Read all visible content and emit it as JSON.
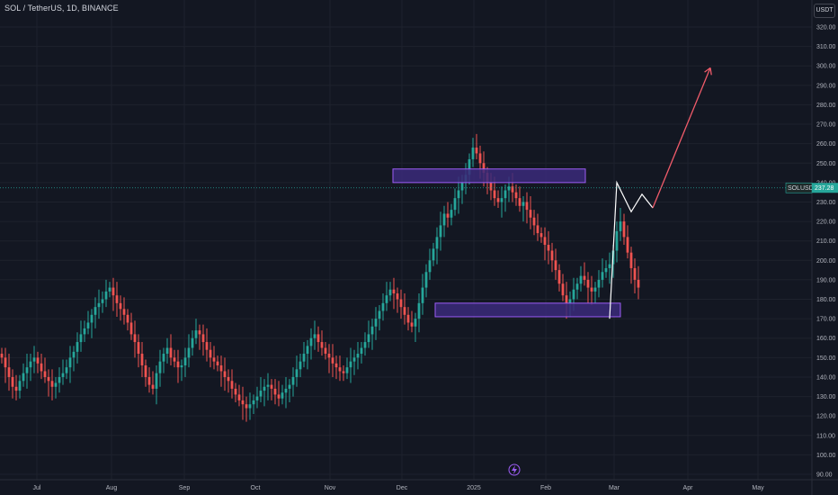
{
  "header": {
    "title": "SOL / TetherUS, 1D, BINANCE",
    "currency_button": "USDT"
  },
  "colors": {
    "background": "#131722",
    "up": "#26a69a",
    "down": "#ef5350",
    "zone_fill": "#3b2a7a",
    "zone_border": "#9c5cf5",
    "projection_white": "#ffffff",
    "projection_red": "#f05b6a",
    "price_line": "#26a69a"
  },
  "chart_data": {
    "type": "candlestick",
    "y_axis": {
      "min": 90,
      "max": 320,
      "step": 10,
      "position": "right",
      "ticks": [
        "90.00",
        "100.00",
        "110.00",
        "120.00",
        "130.00",
        "140.00",
        "150.00",
        "160.00",
        "170.00",
        "180.00",
        "190.00",
        "200.00",
        "210.00",
        "220.00",
        "230.00",
        "240.00",
        "250.00",
        "260.00",
        "270.00",
        "280.00",
        "290.00",
        "300.00",
        "310.00",
        "320.00"
      ]
    },
    "x_axis": {
      "labels": [
        "Jul",
        "Aug",
        "Sep",
        "Oct",
        "Nov",
        "Dec",
        "2025",
        "Feb",
        "Mar",
        "Apr",
        "May"
      ]
    },
    "current_price": {
      "symbol": "SOLUSDT",
      "value": "237.28",
      "price": 237.28
    },
    "zones": [
      {
        "name": "resistance",
        "top": 247,
        "bottom": 240
      },
      {
        "name": "support",
        "top": 178,
        "bottom": 171
      }
    ],
    "projection": {
      "white_path": [
        [
          169,
          170
        ],
        [
          171,
          240
        ],
        [
          175,
          225
        ],
        [
          178,
          234
        ],
        [
          181,
          227
        ]
      ],
      "red_arrow": [
        [
          181,
          227
        ],
        [
          197,
          299
        ]
      ]
    },
    "closes": [
      150,
      145,
      140,
      135,
      133,
      138,
      142,
      145,
      148,
      150,
      147,
      143,
      140,
      138,
      135,
      137,
      140,
      142,
      145,
      150,
      153,
      158,
      162,
      165,
      168,
      172,
      176,
      178,
      180,
      184,
      186,
      182,
      178,
      175,
      172,
      168,
      162,
      158,
      152,
      146,
      140,
      136,
      134,
      142,
      148,
      152,
      155,
      150,
      148,
      145,
      146,
      150,
      155,
      160,
      164,
      162,
      158,
      154,
      150,
      148,
      146,
      143,
      140,
      138,
      134,
      131,
      128,
      126,
      124,
      126,
      128,
      130,
      133,
      135,
      136,
      134,
      131,
      129,
      132,
      134,
      136,
      140,
      144,
      148,
      152,
      156,
      160,
      162,
      158,
      155,
      152,
      150,
      147,
      145,
      143,
      142,
      145,
      148,
      150,
      152,
      155,
      158,
      162,
      166,
      170,
      174,
      178,
      182,
      185,
      183,
      180,
      176,
      172,
      168,
      166,
      170,
      178,
      186,
      194,
      200,
      206,
      212,
      218,
      224,
      222,
      226,
      232,
      236,
      240,
      244,
      252,
      258,
      255,
      250,
      245,
      240,
      236,
      232,
      230,
      232,
      236,
      238,
      235,
      232,
      228,
      230,
      226,
      222,
      218,
      214,
      212,
      208,
      205,
      200,
      195,
      188,
      182,
      178,
      180,
      185,
      188,
      192,
      190,
      186,
      184,
      186,
      190,
      194,
      196,
      198,
      205,
      215,
      220,
      212,
      204,
      196,
      190,
      186
    ]
  }
}
